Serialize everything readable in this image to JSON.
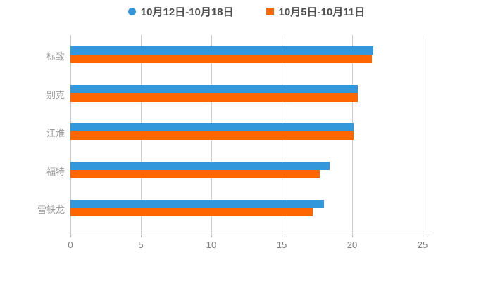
{
  "legend": {
    "items": [
      {
        "label": "10月12日-10月18日",
        "color": "#3398db",
        "marker": "circle"
      },
      {
        "label": "10月5日-10月11日",
        "color": "#ff6600",
        "marker": "square"
      }
    ]
  },
  "chart_data": {
    "type": "bar",
    "orientation": "horizontal",
    "title": "",
    "xlabel": "",
    "ylabel": "",
    "categories": [
      "标致",
      "别克",
      "江淮",
      "福特",
      "雪铁龙"
    ],
    "series": [
      {
        "name": "10月12日-10月18日",
        "color": "#3398db",
        "values": [
          21.5,
          20.4,
          20.1,
          18.4,
          18.0
        ]
      },
      {
        "name": "10月5日-10月11日",
        "color": "#ff6600",
        "values": [
          21.4,
          20.4,
          20.1,
          17.7,
          17.2
        ]
      }
    ],
    "xlim": [
      0,
      25
    ],
    "x_ticks": [
      0,
      5,
      10,
      15,
      20,
      25
    ],
    "grid": true,
    "legend_position": "top",
    "colors": {
      "grid_line": "#cccccc",
      "axis_line": "#c0c0c0",
      "tick_label": "#808080",
      "category_label": "#999999",
      "legend_text": "#4d4d4d",
      "background": "#ffffff"
    }
  }
}
